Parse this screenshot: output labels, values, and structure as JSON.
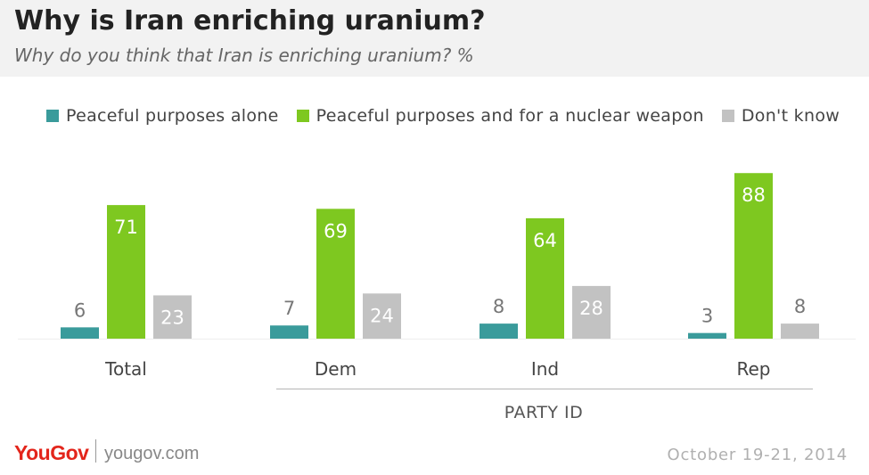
{
  "header": {
    "title": "Why is Iran enriching uranium?",
    "subtitle": "Why do you think that Iran is enriching uranium? %"
  },
  "chart_data": {
    "type": "bar",
    "categories": [
      "Total",
      "Dem",
      "Ind",
      "Rep"
    ],
    "series": [
      {
        "name": "Peaceful purposes alone",
        "color": "#3a9b9b",
        "values": [
          6,
          7,
          8,
          3
        ]
      },
      {
        "name": "Peaceful purposes and for a nuclear weapon",
        "color": "#7ec820",
        "values": [
          71,
          69,
          64,
          88
        ]
      },
      {
        "name": "Don't know",
        "color": "#c2c2c2",
        "values": [
          23,
          24,
          28,
          8
        ]
      }
    ],
    "group_label": "PARTY ID",
    "ylim": [
      0,
      90
    ],
    "grid": false,
    "legend_position": "top"
  },
  "footer": {
    "brand": "YouGov",
    "site": "yougov.com",
    "date": "October 19-21, 2014"
  }
}
